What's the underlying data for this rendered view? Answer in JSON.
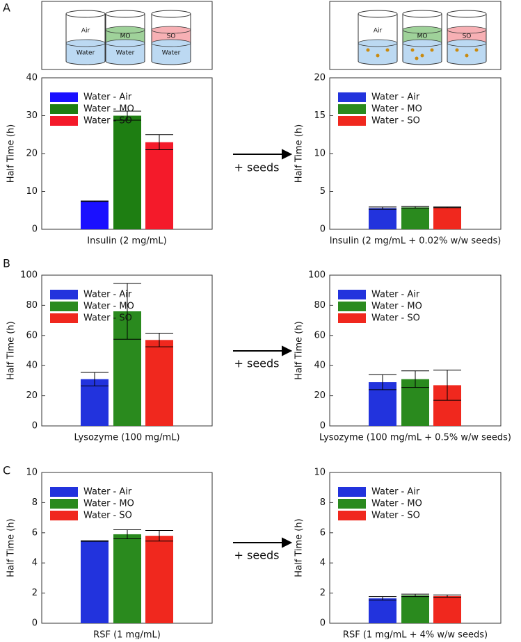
{
  "panel_labels": [
    "A",
    "B",
    "C"
  ],
  "arrow_labels": [
    "+ seeds",
    "+ seeds",
    "+ seeds"
  ],
  "schematics": [
    {
      "beakers": [
        {
          "upper": "Air",
          "lower": "Water"
        },
        {
          "upper": "MO",
          "lower": "Water"
        },
        {
          "upper": "SO",
          "lower": "Water"
        }
      ]
    },
    {
      "beakers": [
        {
          "upper": "Air"
        },
        {
          "upper": "MO"
        },
        {
          "upper": "SO"
        }
      ]
    }
  ],
  "chart_data": [
    {
      "type": "bar",
      "xlabel": "Insulin (2 mg/mL)",
      "ylabel": "Half Time (h)",
      "ylim": [
        0,
        40
      ],
      "yticks": [
        0,
        10,
        20,
        30,
        40
      ],
      "series": [
        {
          "name": "Water - Air",
          "color": "#1a10ff",
          "values": [
            7.4
          ],
          "errors": [
            0.1
          ]
        },
        {
          "name": "Water - MO",
          "color": "#1e7e12",
          "values": [
            30
          ],
          "errors": [
            1.2
          ]
        },
        {
          "name": "Water - SO",
          "color": "#f41a2a",
          "values": [
            23
          ],
          "errors": [
            2
          ]
        }
      ]
    },
    {
      "type": "bar",
      "xlabel": "Insulin (2 mg/mL + 0.02% w/w seeds)",
      "ylabel": "Half Time (h)",
      "ylim": [
        0,
        20
      ],
      "yticks": [
        0,
        5,
        10,
        15,
        20
      ],
      "series": [
        {
          "name": "Water - Air",
          "color": "#2233dd",
          "values": [
            2.8
          ],
          "errors": [
            0.15
          ]
        },
        {
          "name": "Water - MO",
          "color": "#2a8a1e",
          "values": [
            2.9
          ],
          "errors": [
            0.1
          ]
        },
        {
          "name": "Water - SO",
          "color": "#f0281e",
          "values": [
            2.9
          ],
          "errors": [
            0.05
          ]
        }
      ]
    },
    {
      "type": "bar",
      "xlabel": "Lysozyme (100 mg/mL)",
      "ylabel": "Half Time (h)",
      "ylim": [
        0,
        100
      ],
      "yticks": [
        0,
        20,
        40,
        60,
        80,
        100
      ],
      "series": [
        {
          "name": "Water - Air",
          "color": "#2233dd",
          "values": [
            31
          ],
          "errors": [
            4.5
          ]
        },
        {
          "name": "Water - MO",
          "color": "#2a8a1e",
          "values": [
            76
          ],
          "errors": [
            18.5
          ]
        },
        {
          "name": "Water - SO",
          "color": "#f0281e",
          "values": [
            57
          ],
          "errors": [
            4.5
          ]
        }
      ]
    },
    {
      "type": "bar",
      "xlabel": "Lysozyme (100 mg/mL + 0.5% w/w seeds)",
      "ylabel": "Half Time (h)",
      "ylim": [
        0,
        100
      ],
      "yticks": [
        0,
        20,
        40,
        60,
        80,
        100
      ],
      "series": [
        {
          "name": "Water - Air",
          "color": "#2233dd",
          "values": [
            29
          ],
          "errors": [
            5
          ]
        },
        {
          "name": "Water - MO",
          "color": "#2a8a1e",
          "values": [
            31
          ],
          "errors": [
            5.5
          ]
        },
        {
          "name": "Water - SO",
          "color": "#f0281e",
          "values": [
            27
          ],
          "errors": [
            10
          ]
        }
      ]
    },
    {
      "type": "bar",
      "xlabel": "RSF (1 mg/mL)",
      "ylabel": "Half Time (h)",
      "ylim": [
        0,
        10
      ],
      "yticks": [
        0,
        2,
        4,
        6,
        8,
        10
      ],
      "series": [
        {
          "name": "Water - Air",
          "color": "#2233dd",
          "values": [
            5.45
          ],
          "errors": [
            0.02
          ]
        },
        {
          "name": "Water - MO",
          "color": "#2a8a1e",
          "values": [
            5.9
          ],
          "errors": [
            0.3
          ]
        },
        {
          "name": "Water - SO",
          "color": "#f0281e",
          "values": [
            5.8
          ],
          "errors": [
            0.35
          ]
        }
      ]
    },
    {
      "type": "bar",
      "xlabel": "RSF (1 mg/mL + 4% w/w seeds)",
      "ylabel": "Half Time (h)",
      "ylim": [
        0,
        10
      ],
      "yticks": [
        0,
        2,
        4,
        6,
        8,
        10
      ],
      "series": [
        {
          "name": "Water - Air",
          "color": "#2233dd",
          "values": [
            1.65
          ],
          "errors": [
            0.12
          ]
        },
        {
          "name": "Water - MO",
          "color": "#2a8a1e",
          "values": [
            1.85
          ],
          "errors": [
            0.08
          ]
        },
        {
          "name": "Water - SO",
          "color": "#f0281e",
          "values": [
            1.8
          ],
          "errors": [
            0.08
          ]
        }
      ]
    }
  ]
}
